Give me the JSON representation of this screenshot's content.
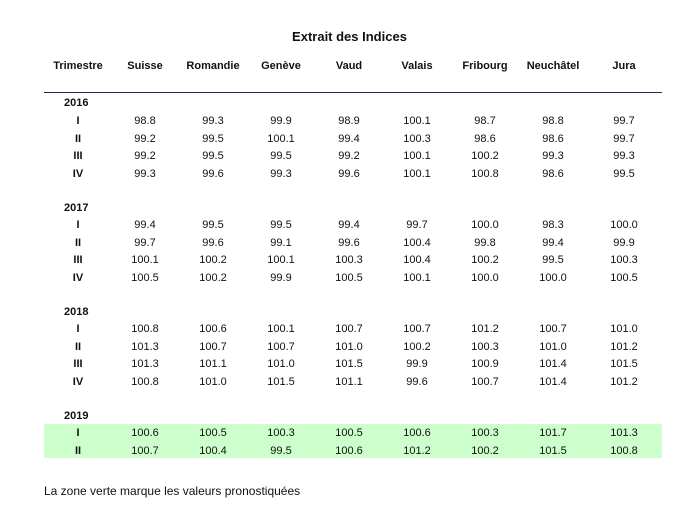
{
  "title": "Extrait des Indices",
  "headers": [
    "Trimestre",
    "Suisse",
    "Romandie",
    "Genève",
    "Vaud",
    "Valais",
    "Fribourg",
    "Neuchâtel",
    "Jura"
  ],
  "years": [
    {
      "year": "2016",
      "rows": [
        {
          "q": "I",
          "values": [
            "98.8",
            "99.3",
            "99.9",
            "98.9",
            "100.1",
            "98.7",
            "98.8",
            "99.7"
          ]
        },
        {
          "q": "II",
          "values": [
            "99.2",
            "99.5",
            "100.1",
            "99.4",
            "100.3",
            "98.6",
            "98.6",
            "99.7"
          ]
        },
        {
          "q": "III",
          "values": [
            "99.2",
            "99.5",
            "99.5",
            "99.2",
            "100.1",
            "100.2",
            "99.3",
            "99.3"
          ]
        },
        {
          "q": "IV",
          "values": [
            "99.3",
            "99.6",
            "99.3",
            "99.6",
            "100.1",
            "100.8",
            "98.6",
            "99.5"
          ]
        }
      ]
    },
    {
      "year": "2017",
      "rows": [
        {
          "q": "I",
          "values": [
            "99.4",
            "99.5",
            "99.5",
            "99.4",
            "99.7",
            "100.0",
            "98.3",
            "100.0"
          ]
        },
        {
          "q": "II",
          "values": [
            "99.7",
            "99.6",
            "99.1",
            "99.6",
            "100.4",
            "99.8",
            "99.4",
            "99.9"
          ]
        },
        {
          "q": "III",
          "values": [
            "100.1",
            "100.2",
            "100.1",
            "100.3",
            "100.4",
            "100.2",
            "99.5",
            "100.3"
          ]
        },
        {
          "q": "IV",
          "values": [
            "100.5",
            "100.2",
            "99.9",
            "100.5",
            "100.1",
            "100.0",
            "100.0",
            "100.5"
          ]
        }
      ]
    },
    {
      "year": "2018",
      "rows": [
        {
          "q": "I",
          "values": [
            "100.8",
            "100.6",
            "100.1",
            "100.7",
            "100.7",
            "101.2",
            "100.7",
            "101.0"
          ]
        },
        {
          "q": "II",
          "values": [
            "101.3",
            "100.7",
            "100.7",
            "101.0",
            "100.2",
            "100.3",
            "101.0",
            "101.2"
          ]
        },
        {
          "q": "III",
          "values": [
            "101.3",
            "101.1",
            "101.0",
            "101.5",
            "99.9",
            "100.9",
            "101.4",
            "101.5"
          ]
        },
        {
          "q": "IV",
          "values": [
            "100.8",
            "101.0",
            "101.5",
            "101.1",
            "99.6",
            "100.7",
            "101.4",
            "101.2"
          ]
        }
      ]
    },
    {
      "year": "2019",
      "rows": [
        {
          "q": "I",
          "values": [
            "100.6",
            "100.5",
            "100.3",
            "100.5",
            "100.6",
            "100.3",
            "101.7",
            "101.3"
          ]
        },
        {
          "q": "II",
          "values": [
            "100.7",
            "100.4",
            "99.5",
            "100.6",
            "101.2",
            "100.2",
            "101.5",
            "100.8"
          ]
        }
      ]
    }
  ],
  "forecast_color": "#ccffcc",
  "footnote": "La zone verte marque les valeurs pronostiquées"
}
